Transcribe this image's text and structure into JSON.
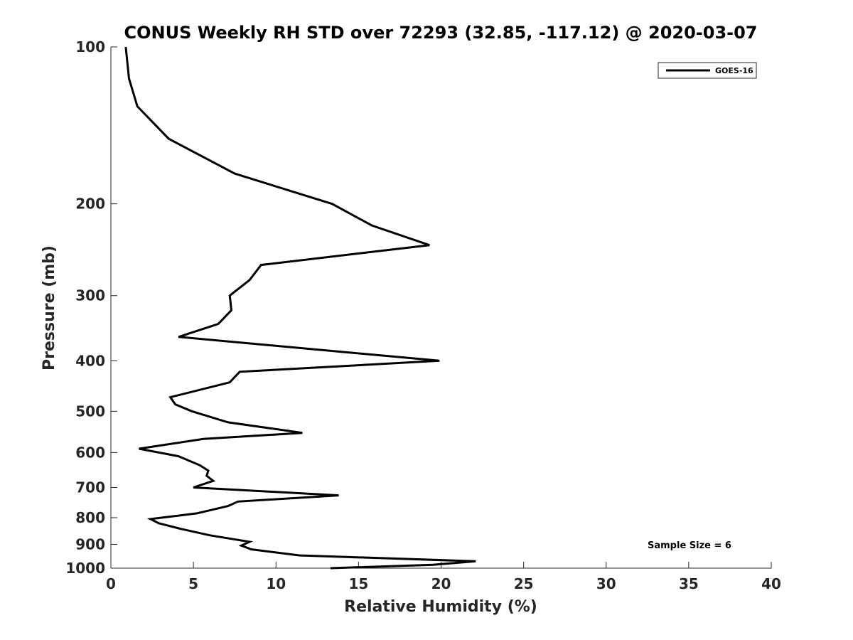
{
  "chart_data": {
    "type": "line",
    "title": "CONUS Weekly RH STD over 72293 (32.85, -117.12) @ 2020-03-07",
    "xlabel": "Relative Humidity (%)",
    "ylabel": "Pressure (mb)",
    "xlim": [
      0,
      40
    ],
    "ylim": [
      100,
      1000
    ],
    "y_scale": "log",
    "y_reversed": true,
    "xticks": [
      0,
      5,
      10,
      15,
      20,
      25,
      30,
      35,
      40
    ],
    "yticks": [
      100,
      200,
      300,
      400,
      500,
      600,
      700,
      800,
      900,
      1000
    ],
    "grid": false,
    "legend_position": "top-right",
    "annotation": "Sample Size = 6",
    "series": [
      {
        "name": "GOES-16",
        "color": "#000000",
        "x": [
          0.9,
          1.1,
          1.6,
          3.5,
          7.5,
          13.4,
          15.8,
          19.3,
          9.1,
          8.4,
          7.2,
          7.3,
          6.5,
          4.1,
          19.9,
          7.8,
          7.2,
          3.6,
          3.9,
          4.9,
          7.1,
          11.6,
          5.6,
          1.7,
          4.1,
          5.4,
          5.9,
          5.8,
          6.2,
          5.0,
          13.8,
          7.7,
          7.1,
          5.2,
          2.4,
          2.9,
          4.2,
          6.0,
          8.4,
          7.9,
          8.5,
          11.4,
          22.1,
          19.5,
          13.3
        ],
        "y": [
          100,
          115,
          130,
          150,
          175,
          200,
          220,
          240,
          262,
          280,
          300,
          320,
          340,
          360,
          400,
          420,
          440,
          470,
          485,
          500,
          525,
          550,
          565,
          590,
          610,
          635,
          650,
          665,
          680,
          700,
          725,
          745,
          760,
          785,
          805,
          820,
          840,
          865,
          890,
          905,
          920,
          945,
          970,
          985,
          1000
        ]
      }
    ]
  }
}
